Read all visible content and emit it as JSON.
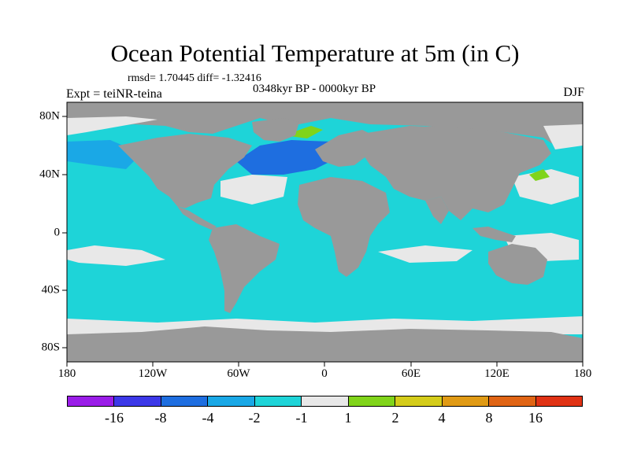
{
  "title": "Ocean Potential Temperature at 5m (in C)",
  "stats": "rmsd= 1.70445  diff= -1.32416",
  "expt": "Expt = teiNR-teina",
  "period": "0348kyr BP - 0000kyr BP",
  "season": "DJF",
  "lon_labels": [
    "180",
    "120W",
    "60W",
    "0",
    "60E",
    "120E",
    "180"
  ],
  "lat_labels": [
    "80N",
    "40N",
    "0",
    "40S",
    "80S"
  ],
  "colorbar": {
    "labels": [
      "-16",
      "-8",
      "-4",
      "-2",
      "-1",
      "1",
      "2",
      "4",
      "8",
      "16"
    ],
    "colors": [
      "#9a1de8",
      "#3c38e8",
      "#1e6ee0",
      "#1aa8e6",
      "#1ed4d8",
      "#e8e8e8",
      "#80d41a",
      "#d4cc1a",
      "#e09a14",
      "#e06414",
      "#e03214"
    ]
  },
  "colors": {
    "land": "#999999",
    "ocean": "#1ed4d8",
    "ice": "#e8e8e8"
  }
}
